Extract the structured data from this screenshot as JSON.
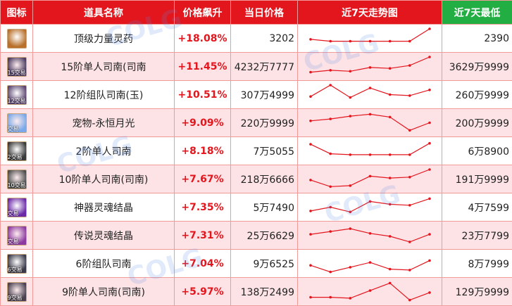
{
  "headers": {
    "icon": "图标",
    "name": "道具名称",
    "change": "价格飙升",
    "price": "当日价格",
    "trend": "近7天走势图",
    "low": "近7天最低"
  },
  "rows": [
    {
      "icon": "elixir-icon",
      "icon_color": "#b8702a",
      "tag": "",
      "name": "顶级力量灵药",
      "change": "+18.08%",
      "price": "3202",
      "low": "2390",
      "trend": [
        0.45,
        0.35,
        0.35,
        0.35,
        0.35,
        0.35,
        1.0
      ]
    },
    {
      "icon": "wing-icon",
      "icon_color": "#4a3a60",
      "tag": "15交易",
      "name": "15阶单人司南(司南",
      "change": "+11.45%",
      "price": "4232万7777",
      "low": "3629万9999",
      "trend": [
        0.2,
        0.3,
        0.25,
        0.45,
        0.4,
        0.55,
        1.0
      ]
    },
    {
      "icon": "wing-icon",
      "icon_color": "#5a4470",
      "tag": "12交易",
      "name": "12阶组队司南(玉)",
      "change": "+10.51%",
      "price": "307万4999",
      "low": "260万9999",
      "trend": [
        0.4,
        1.0,
        0.35,
        0.85,
        0.5,
        0.45,
        0.75
      ]
    },
    {
      "icon": "moon-icon",
      "icon_color": "#7aa8e8",
      "tag": "交易",
      "name": "宠物-永恒月光",
      "change": "+9.09%",
      "price": "220万9999",
      "low": "200万9999",
      "trend": [
        0.6,
        0.7,
        0.85,
        0.95,
        0.8,
        0.1,
        0.5
      ]
    },
    {
      "icon": "wing-icon",
      "icon_color": "#3a3a3a",
      "tag": "2交易",
      "name": "2阶单人司南",
      "change": "+8.18%",
      "price": "7万5055",
      "low": "6万8900",
      "trend": [
        0.85,
        0.35,
        0.3,
        0.3,
        0.3,
        0.3,
        0.9
      ]
    },
    {
      "icon": "wing-icon",
      "icon_color": "#4c4c4c",
      "tag": "10交易",
      "name": "10阶单人司南(司南)",
      "change": "+7.67%",
      "price": "218万6666",
      "low": "191万9999",
      "trend": [
        0.45,
        0.1,
        0.15,
        0.65,
        0.55,
        0.6,
        1.0
      ]
    },
    {
      "icon": "soul-icon",
      "icon_color": "#6a2aa8",
      "tag": "交易",
      "name": "神器灵魂结晶",
      "change": "+7.35%",
      "price": "5万7490",
      "low": "4万7599",
      "trend": [
        0.3,
        0.5,
        0.25,
        0.8,
        0.65,
        0.6,
        0.95
      ]
    },
    {
      "icon": "soul-icon",
      "icon_color": "#8a3aa0",
      "tag": "交易",
      "name": "传说灵魂结晶",
      "change": "+7.31%",
      "price": "25万6629",
      "low": "23万7799",
      "trend": [
        0.55,
        0.7,
        0.85,
        0.6,
        0.45,
        0.15,
        0.55
      ]
    },
    {
      "icon": "wing-icon",
      "icon_color": "#3a3a4a",
      "tag": "6交易",
      "name": "6阶组队司南",
      "change": "+7.04%",
      "price": "9万6525",
      "low": "8万7999",
      "trend": [
        0.4,
        0.05,
        0.3,
        0.55,
        0.2,
        0.15,
        0.65
      ]
    },
    {
      "icon": "wing-icon",
      "icon_color": "#4a4050",
      "tag": "9交易",
      "name": "9阶单人司南(司南)",
      "change": "+5.97%",
      "price": "138万2499",
      "low": "129万9999",
      "trend": [
        0.2,
        0.2,
        0.15,
        0.55,
        0.95,
        0.05,
        0.45
      ]
    }
  ],
  "colors": {
    "header": "#e3161e",
    "header_last": "#23ae43",
    "accent": "#e3161e",
    "row_even": "#fde3e6"
  }
}
